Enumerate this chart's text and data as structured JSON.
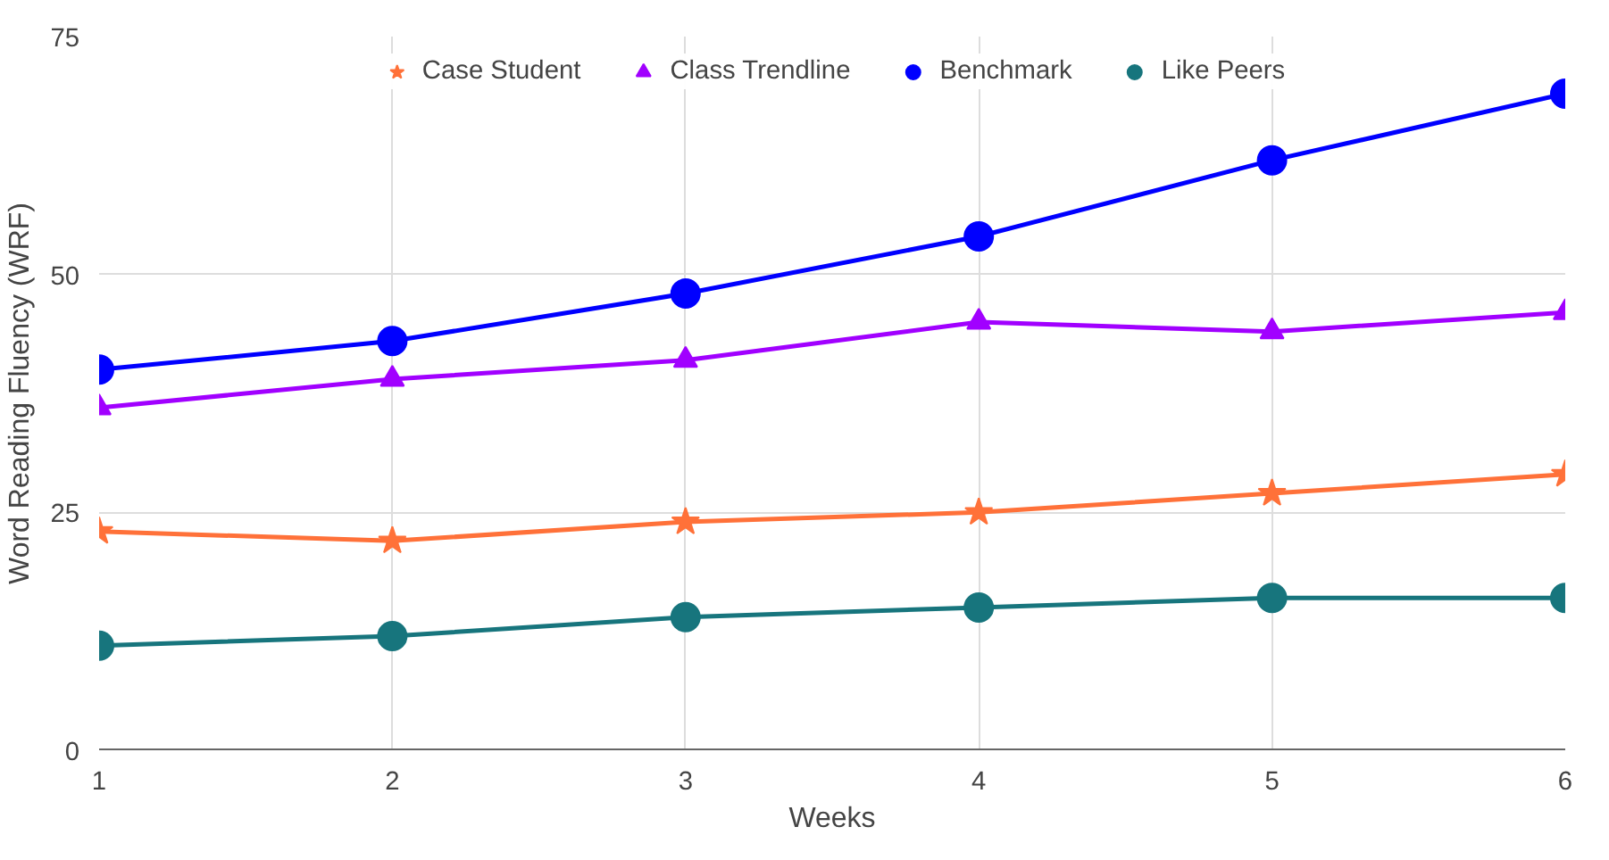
{
  "chart_data": {
    "type": "line",
    "xlabel": "Weeks",
    "ylabel": "Word Reading Fluency (WRF)",
    "x": [
      1,
      2,
      3,
      4,
      5,
      6
    ],
    "xlim": [
      1,
      6
    ],
    "xticks": [
      1,
      2,
      3,
      4,
      5,
      6
    ],
    "ylim": [
      0,
      75
    ],
    "yticks": [
      0,
      25,
      50,
      75
    ],
    "grid": true,
    "legend": "top",
    "series": [
      {
        "name": "Case Student",
        "color": "#ff7139",
        "marker": "star",
        "values": [
          23,
          22,
          24,
          25,
          27,
          29
        ]
      },
      {
        "name": "Class Trendline",
        "color": "#a100ff",
        "marker": "triangle",
        "values": [
          36,
          39,
          41,
          45,
          44,
          46
        ]
      },
      {
        "name": "Benchmark",
        "color": "#0000ff",
        "marker": "circle",
        "values": [
          40,
          43,
          48,
          54,
          62,
          69
        ]
      },
      {
        "name": "Like Peers",
        "color": "#17757d",
        "marker": "circle",
        "values": [
          11,
          12,
          14,
          15,
          16,
          16
        ]
      }
    ]
  }
}
